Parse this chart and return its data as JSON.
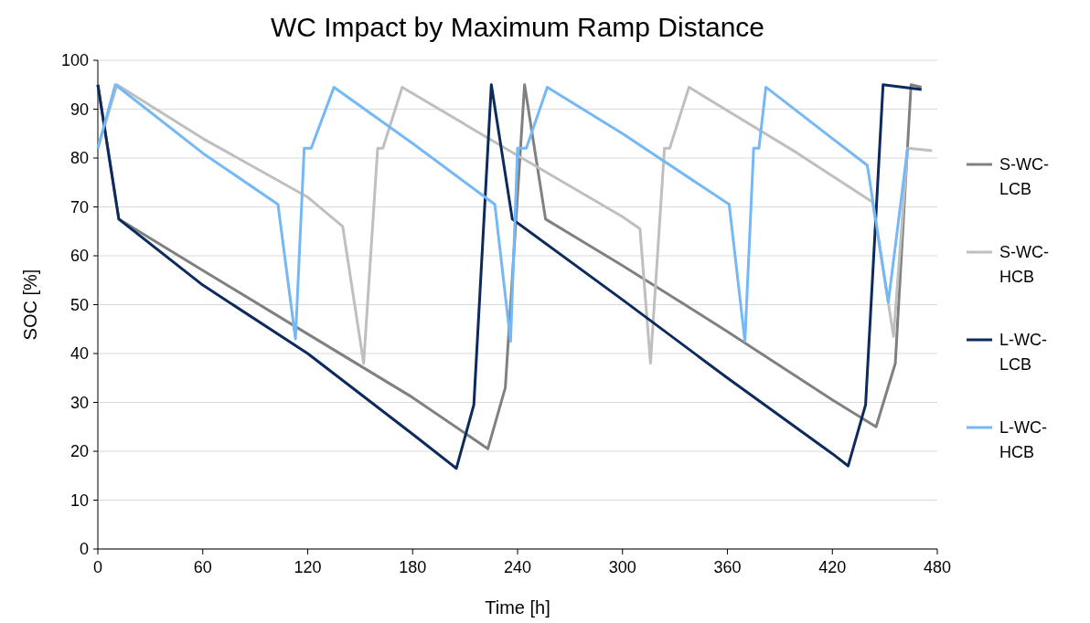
{
  "chart_data": {
    "type": "line",
    "title": "WC Impact by Maximum Ramp Distance",
    "xlabel": "Time [h]",
    "ylabel": "SOC [%]",
    "xlim": [
      0,
      480
    ],
    "xticks": [
      0,
      60,
      120,
      180,
      240,
      300,
      360,
      420,
      480
    ],
    "ylim": [
      0,
      100
    ],
    "yticks": [
      0,
      10,
      20,
      30,
      40,
      50,
      60,
      70,
      80,
      90,
      100
    ],
    "grid": "y",
    "legend": "right",
    "line_style": "solid",
    "marker": "none",
    "series": [
      {
        "name": "S-WC-LCB",
        "color": "#808080",
        "x": [
          0,
          12,
          60,
          120,
          180,
          223,
          233,
          244,
          256,
          300,
          360,
          420,
          445,
          456,
          465,
          471
        ],
        "values": [
          95,
          67.5,
          57,
          44,
          31,
          20.5,
          33,
          95,
          67.5,
          58,
          44.5,
          30.5,
          25,
          38,
          95,
          94.5
        ]
      },
      {
        "name": "S-WC-HCB",
        "color": "#bfbfbf",
        "x": [
          0,
          11,
          60,
          120,
          140,
          152,
          160,
          163,
          174,
          240,
          300,
          310,
          316,
          324,
          327,
          338,
          400,
          443,
          455,
          463,
          477
        ],
        "values": [
          82,
          95,
          84,
          72,
          66,
          38,
          82,
          82,
          94.5,
          80.5,
          68,
          65.5,
          38,
          82,
          82,
          94.5,
          81,
          71,
          43.5,
          82,
          81.5
        ]
      },
      {
        "name": "L-WC-LCB",
        "color": "#0c2a5c",
        "x": [
          0,
          12,
          60,
          120,
          180,
          205,
          215,
          225,
          237,
          300,
          360,
          420,
          429,
          439,
          449,
          471
        ],
        "values": [
          95,
          67.5,
          54,
          40,
          23.5,
          16.5,
          29.5,
          95,
          67.5,
          51,
          35,
          19.5,
          17,
          29.5,
          95,
          94
        ]
      },
      {
        "name": "L-WC-HCB",
        "color": "#74b8f5",
        "x": [
          0,
          10,
          60,
          103,
          113,
          118,
          122,
          135,
          180,
          227,
          236,
          240,
          245,
          257,
          300,
          361,
          370,
          375,
          378,
          382,
          420,
          440,
          452,
          463
        ],
        "values": [
          82,
          95,
          81,
          70.5,
          43,
          82,
          82,
          94.5,
          83,
          70.5,
          42.5,
          82,
          82,
          94.5,
          85,
          70.5,
          42.5,
          82,
          82,
          94.5,
          84,
          78.5,
          50.5,
          82
        ]
      }
    ]
  }
}
